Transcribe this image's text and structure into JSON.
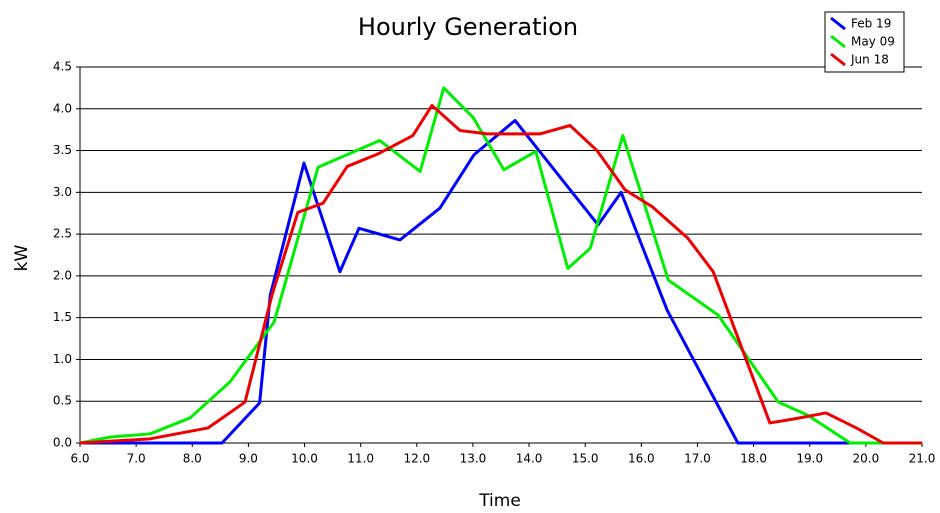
{
  "chart_data": {
    "type": "line",
    "title": "Hourly Generation",
    "xlabel": "Time",
    "ylabel": "kW",
    "xlim": [
      6,
      21
    ],
    "ylim": [
      0,
      4.5
    ],
    "xticks": [
      {
        "value": 6,
        "label": "6.0"
      },
      {
        "value": 7,
        "label": "7.0"
      },
      {
        "value": 8,
        "label": "8.0"
      },
      {
        "value": 9,
        "label": "9.0"
      },
      {
        "value": 10,
        "label": "10.0"
      },
      {
        "value": 11,
        "label": "11.0"
      },
      {
        "value": 12,
        "label": "12.0"
      },
      {
        "value": 13,
        "label": "13.0"
      },
      {
        "value": 14,
        "label": "14.0"
      },
      {
        "value": 15,
        "label": "15.0"
      },
      {
        "value": 16,
        "label": "16.0"
      },
      {
        "value": 17,
        "label": "17.0"
      },
      {
        "value": 18,
        "label": "18.0"
      },
      {
        "value": 19,
        "label": "19.0"
      },
      {
        "value": 20,
        "label": "20.0"
      },
      {
        "value": 21,
        "label": "21.0"
      }
    ],
    "yticks": [
      {
        "value": 0,
        "label": "0.0"
      },
      0.5,
      {
        "value": 1,
        "label": "1.0"
      },
      1.5,
      {
        "value": 2,
        "label": "2.0"
      },
      2.5,
      {
        "value": 3,
        "label": "3.0"
      },
      3.5,
      {
        "value": 4,
        "label": "4.0"
      },
      4.5
    ],
    "grid": true,
    "legend": "upper right",
    "series": [
      {
        "name": "Feb 19",
        "color": "#0000ff",
        "x": [
          6.0,
          8.53,
          9.2,
          9.39,
          9.99,
          10.63,
          10.97,
          11.7,
          12.41,
          13.02,
          13.75,
          15.23,
          15.64,
          16.46,
          17.72,
          21.0
        ],
        "values": [
          0,
          0,
          0.48,
          1.77,
          3.35,
          2.05,
          2.57,
          2.43,
          2.81,
          3.45,
          3.86,
          2.61,
          3.0,
          1.59,
          0,
          0
        ]
      },
      {
        "name": "May 09",
        "color": "#00ee00",
        "x": [
          6.0,
          6.53,
          7.25,
          7.96,
          8.67,
          9.46,
          10.24,
          11.34,
          12.06,
          12.48,
          13.0,
          13.55,
          14.12,
          14.69,
          15.09,
          15.67,
          16.48,
          17.37,
          18.44,
          18.97,
          19.72,
          21.0
        ],
        "values": [
          0,
          0.07,
          0.11,
          0.3,
          0.73,
          1.45,
          3.3,
          3.62,
          3.25,
          4.25,
          3.9,
          3.27,
          3.49,
          2.09,
          2.33,
          3.68,
          1.95,
          1.53,
          0.49,
          0.33,
          0,
          0
        ]
      },
      {
        "name": "Jun 18",
        "color": "#ee0000",
        "x": [
          6.0,
          7.25,
          8.28,
          8.94,
          9.42,
          9.88,
          10.33,
          10.76,
          11.31,
          11.93,
          12.27,
          12.77,
          13.25,
          14.2,
          14.73,
          15.21,
          15.71,
          16.19,
          16.83,
          17.28,
          18.29,
          18.74,
          19.29,
          19.83,
          20.31,
          21.0
        ],
        "values": [
          0,
          0.05,
          0.18,
          0.49,
          1.77,
          2.76,
          2.87,
          3.31,
          3.46,
          3.68,
          4.04,
          3.74,
          3.7,
          3.7,
          3.8,
          3.5,
          3.03,
          2.83,
          2.45,
          2.05,
          0.24,
          0.29,
          0.36,
          0.18,
          0,
          0
        ]
      }
    ]
  }
}
